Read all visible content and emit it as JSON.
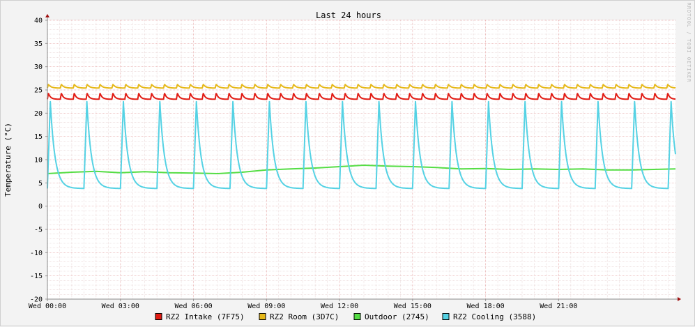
{
  "chart_data": {
    "type": "line",
    "title": "Last 24 hours",
    "ylabel": "Temperature (°C)",
    "watermark": "RRDTOOL / TOBI OETIKER",
    "ylim": [
      -20,
      40
    ],
    "yticks": [
      40,
      35,
      30,
      25,
      20,
      15,
      10,
      5,
      0,
      -5,
      -10,
      -15,
      -20
    ],
    "xlim_hours": [
      0,
      25.8
    ],
    "xticks": [
      {
        "hour": 0,
        "label": "Wed 00:00"
      },
      {
        "hour": 3,
        "label": "Wed 03:00"
      },
      {
        "hour": 6,
        "label": "Wed 06:00"
      },
      {
        "hour": 9,
        "label": "Wed 09:00"
      },
      {
        "hour": 12,
        "label": "Wed 12:00"
      },
      {
        "hour": 15,
        "label": "Wed 15:00"
      },
      {
        "hour": 18,
        "label": "Wed 18:00"
      },
      {
        "hour": 21,
        "label": "Wed 21:00"
      }
    ],
    "grid": true,
    "legend_position": "bottom",
    "series": [
      {
        "name": "RZ2 Intake (7F75)",
        "color": "#e11a12",
        "pattern": "cycle",
        "cycle_hours": 0.53,
        "base": 23.0,
        "peak": 24.3,
        "decay": 0.45
      },
      {
        "name": "RZ2 Room (3D7C)",
        "color": "#e6b818",
        "pattern": "cycle",
        "cycle_hours": 0.53,
        "base": 25.4,
        "peak": 26.2,
        "decay": 0.55
      },
      {
        "name": "Outdoor (2745)",
        "color": "#55dd44",
        "pattern": "points",
        "x": [
          0,
          1,
          2,
          3,
          4,
          5,
          6,
          7,
          8,
          9,
          10,
          11,
          12,
          13,
          14,
          15,
          16,
          17,
          18,
          19,
          20,
          21,
          22,
          23,
          24,
          25.8
        ],
        "y": [
          7.0,
          7.3,
          7.5,
          7.2,
          7.4,
          7.2,
          7.1,
          7.0,
          7.3,
          7.8,
          8.0,
          8.2,
          8.5,
          8.8,
          8.6,
          8.5,
          8.3,
          8.0,
          8.1,
          7.9,
          8.0,
          7.9,
          8.0,
          7.8,
          7.8,
          8.0
        ]
      },
      {
        "name": "RZ2 Cooling (3588)",
        "color": "#55d2e4",
        "pattern": "cycle",
        "cycle_hours": 1.5,
        "base": 3.8,
        "peak": 22.5,
        "decay": 0.35
      }
    ]
  }
}
